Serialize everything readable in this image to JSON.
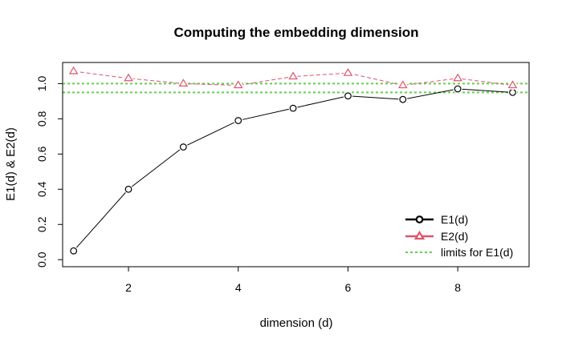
{
  "chart_data": {
    "type": "line",
    "title": "Computing the embedding dimension",
    "xlabel": "dimension (d)",
    "ylabel": "E1(d) & E2(d)",
    "xlim": [
      0.8,
      9.3
    ],
    "ylim": [
      -0.04,
      1.12
    ],
    "xticks": [
      2,
      4,
      6,
      8
    ],
    "yticks": [
      0.0,
      0.2,
      0.4,
      0.6,
      0.8,
      1.0
    ],
    "x": [
      1,
      2,
      3,
      4,
      5,
      6,
      7,
      8,
      9
    ],
    "series": [
      {
        "name": "E1(d)",
        "values": [
          0.05,
          0.4,
          0.64,
          0.79,
          0.86,
          0.93,
          0.91,
          0.97,
          0.95
        ],
        "color": "#000000",
        "line_style": "solid",
        "marker": "circle"
      },
      {
        "name": "E2(d)",
        "values": [
          1.07,
          1.03,
          1.0,
          0.99,
          1.04,
          1.06,
          0.99,
          1.03,
          0.99
        ],
        "color": "#DF536B",
        "line_style": "dashed",
        "marker": "triangle"
      }
    ],
    "reference_lines": {
      "name": "limits for E1(d)",
      "values": [
        1.0,
        0.95
      ],
      "color": "#61D04F",
      "line_style": "dotted"
    },
    "grid": false,
    "legend_position": "bottom-right"
  }
}
